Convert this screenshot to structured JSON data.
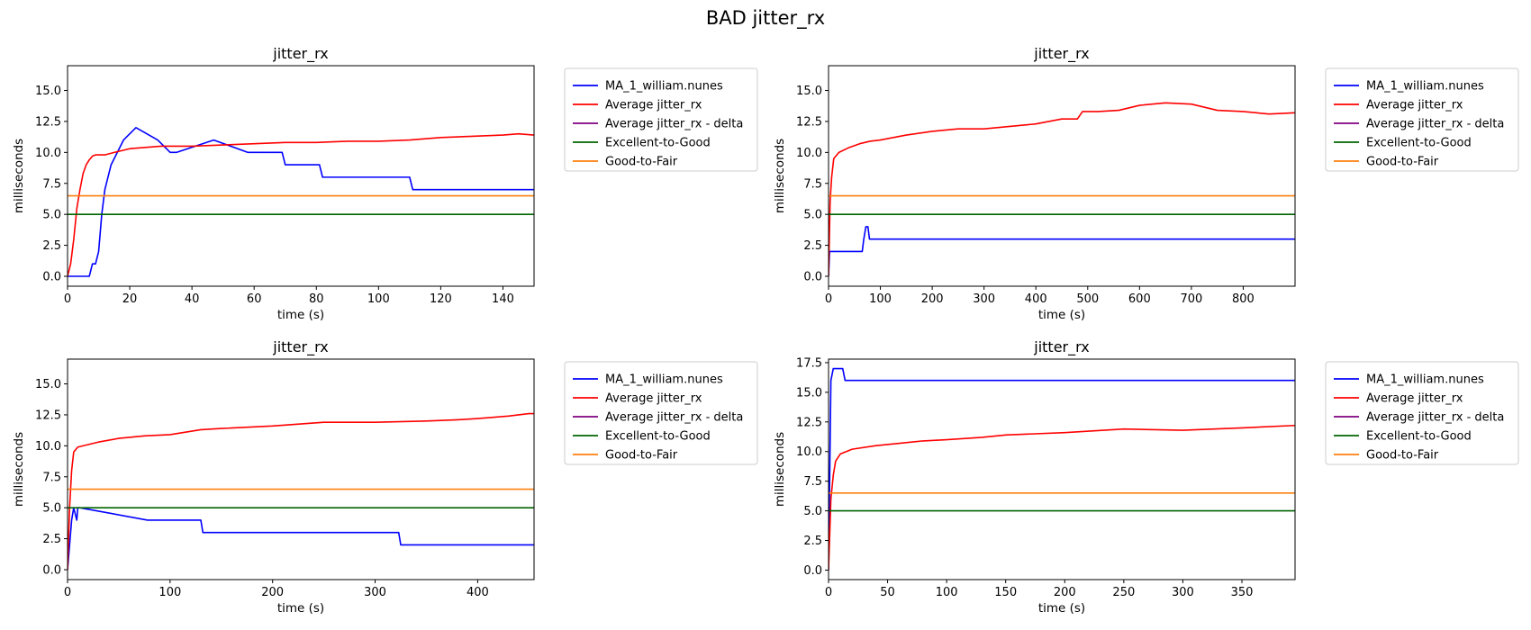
{
  "figure": {
    "title": "BAD jitter_rx"
  },
  "chart_data": [
    {
      "type": "line",
      "title": "jitter_rx",
      "xlabel": "time (s)",
      "ylabel": "milliseconds",
      "xlim": [
        0,
        150
      ],
      "ylim": [
        -0.8,
        17.0
      ],
      "xticks": [
        0,
        20,
        40,
        60,
        80,
        100,
        120,
        140
      ],
      "yticks": [
        0.0,
        2.5,
        5.0,
        7.5,
        10.0,
        12.5,
        15.0
      ],
      "legend": "outside-right",
      "series": [
        {
          "name": "MA_1_william.nunes",
          "color": "#0000ff",
          "step": true,
          "x": [
            0,
            7,
            8,
            9,
            10,
            11,
            12,
            14,
            16,
            18,
            22,
            29,
            33,
            35,
            47,
            58,
            69,
            70,
            81,
            82,
            110,
            111,
            150
          ],
          "y": [
            0,
            0,
            1,
            1,
            2,
            5,
            7,
            9,
            10,
            11,
            12,
            11,
            10,
            10,
            11,
            10,
            10,
            9,
            9,
            8,
            8,
            7,
            7
          ]
        },
        {
          "name": "Average jitter_rx",
          "color": "#ff0000",
          "x": [
            0,
            1,
            2,
            3,
            4,
            5,
            6,
            7,
            8,
            9,
            10,
            12,
            15,
            20,
            25,
            30,
            40,
            50,
            60,
            70,
            80,
            90,
            100,
            110,
            120,
            130,
            140,
            145,
            150
          ],
          "y": [
            0,
            1,
            3,
            5.5,
            7,
            8.3,
            9,
            9.4,
            9.7,
            9.8,
            9.8,
            9.8,
            10,
            10.3,
            10.4,
            10.5,
            10.5,
            10.6,
            10.7,
            10.8,
            10.8,
            10.9,
            10.9,
            11,
            11.2,
            11.3,
            11.4,
            11.5,
            11.4
          ]
        },
        {
          "name": "Average jitter_rx - delta",
          "color": "#800080",
          "x": [],
          "y": []
        },
        {
          "name": "Excellent-to-Good",
          "color": "#006400",
          "x": [
            0,
            150
          ],
          "y": [
            5,
            5
          ]
        },
        {
          "name": "Good-to-Fair",
          "color": "#ff7f0e",
          "x": [
            0,
            150
          ],
          "y": [
            6.5,
            6.5
          ]
        }
      ]
    },
    {
      "type": "line",
      "title": "jitter_rx",
      "xlabel": "time (s)",
      "ylabel": "milliseconds",
      "xlim": [
        0,
        900
      ],
      "ylim": [
        -0.8,
        17.0
      ],
      "xticks": [
        0,
        100,
        200,
        300,
        400,
        500,
        600,
        700,
        800
      ],
      "yticks": [
        0.0,
        2.5,
        5.0,
        7.5,
        10.0,
        12.5,
        15.0
      ],
      "legend": "outside-right",
      "series": [
        {
          "name": "MA_1_william.nunes",
          "color": "#0000ff",
          "step": true,
          "x": [
            0,
            2,
            65,
            68,
            72,
            76,
            79,
            900
          ],
          "y": [
            0,
            2,
            2,
            3,
            4,
            4,
            3,
            3
          ]
        },
        {
          "name": "Average jitter_rx",
          "color": "#ff0000",
          "x": [
            0,
            3,
            6,
            10,
            20,
            40,
            60,
            80,
            100,
            150,
            200,
            250,
            300,
            350,
            400,
            450,
            480,
            490,
            520,
            560,
            600,
            650,
            700,
            750,
            800,
            850,
            900
          ],
          "y": [
            0,
            6,
            8,
            9.5,
            10,
            10.4,
            10.7,
            10.9,
            11,
            11.4,
            11.7,
            11.9,
            11.9,
            12.1,
            12.3,
            12.7,
            12.7,
            13.3,
            13.3,
            13.4,
            13.8,
            14,
            13.9,
            13.4,
            13.3,
            13.1,
            13.2
          ]
        },
        {
          "name": "Average jitter_rx - delta",
          "color": "#800080",
          "x": [],
          "y": []
        },
        {
          "name": "Excellent-to-Good",
          "color": "#006400",
          "x": [
            0,
            900
          ],
          "y": [
            5,
            5
          ]
        },
        {
          "name": "Good-to-Fair",
          "color": "#ff7f0e",
          "x": [
            0,
            900
          ],
          "y": [
            6.5,
            6.5
          ]
        }
      ]
    },
    {
      "type": "line",
      "title": "jitter_rx",
      "xlabel": "time (s)",
      "ylabel": "milliseconds",
      "xlim": [
        0,
        455
      ],
      "ylim": [
        -0.8,
        17.0
      ],
      "xticks": [
        0,
        100,
        200,
        300,
        400
      ],
      "yticks": [
        0.0,
        2.5,
        5.0,
        7.5,
        10.0,
        12.5,
        15.0
      ],
      "legend": "outside-right",
      "series": [
        {
          "name": "MA_1_william.nunes",
          "color": "#0000ff",
          "step": true,
          "x": [
            0,
            2,
            4,
            6,
            9,
            10,
            12,
            78,
            130,
            132,
            323,
            325,
            455
          ],
          "y": [
            0,
            2,
            4,
            5,
            4,
            5,
            5,
            4,
            4,
            3,
            3,
            2,
            2
          ]
        },
        {
          "name": "Average jitter_rx",
          "color": "#ff0000",
          "x": [
            0,
            2,
            4,
            6,
            10,
            15,
            30,
            50,
            75,
            100,
            130,
            150,
            200,
            250,
            300,
            350,
            380,
            400,
            430,
            450,
            455
          ],
          "y": [
            0,
            5,
            8,
            9.5,
            9.9,
            10,
            10.3,
            10.6,
            10.8,
            10.9,
            11.3,
            11.4,
            11.6,
            11.9,
            11.9,
            12,
            12.1,
            12.2,
            12.4,
            12.6,
            12.6
          ]
        },
        {
          "name": "Average jitter_rx - delta",
          "color": "#800080",
          "x": [],
          "y": []
        },
        {
          "name": "Excellent-to-Good",
          "color": "#006400",
          "x": [
            0,
            455
          ],
          "y": [
            5,
            5
          ]
        },
        {
          "name": "Good-to-Fair",
          "color": "#ff7f0e",
          "x": [
            0,
            455
          ],
          "y": [
            6.5,
            6.5
          ]
        }
      ]
    },
    {
      "type": "line",
      "title": "jitter_rx",
      "xlabel": "time (s)",
      "ylabel": "milliseconds",
      "xlim": [
        0,
        395
      ],
      "ylim": [
        -0.8,
        17.8
      ],
      "xticks": [
        0,
        50,
        100,
        150,
        200,
        250,
        300,
        350
      ],
      "yticks": [
        0.0,
        2.5,
        5.0,
        7.5,
        10.0,
        12.5,
        15.0,
        17.5
      ],
      "legend": "outside-right",
      "series": [
        {
          "name": "MA_1_william.nunes",
          "color": "#0000ff",
          "step": true,
          "x": [
            0,
            2,
            4,
            12,
            14,
            395
          ],
          "y": [
            0,
            16,
            17,
            17,
            16,
            16
          ]
        },
        {
          "name": "Average jitter_rx",
          "color": "#ff0000",
          "x": [
            0,
            2,
            4,
            6,
            10,
            20,
            40,
            60,
            80,
            100,
            130,
            150,
            200,
            250,
            300,
            350,
            395
          ],
          "y": [
            0,
            6,
            8,
            9.2,
            9.8,
            10.2,
            10.5,
            10.7,
            10.9,
            11,
            11.2,
            11.4,
            11.6,
            11.9,
            11.8,
            12,
            12.2
          ]
        },
        {
          "name": "Average jitter_rx - delta",
          "color": "#800080",
          "x": [],
          "y": []
        },
        {
          "name": "Excellent-to-Good",
          "color": "#006400",
          "x": [
            0,
            395
          ],
          "y": [
            5,
            5
          ]
        },
        {
          "name": "Good-to-Fair",
          "color": "#ff7f0e",
          "x": [
            0,
            395
          ],
          "y": [
            6.5,
            6.5
          ]
        }
      ]
    }
  ]
}
